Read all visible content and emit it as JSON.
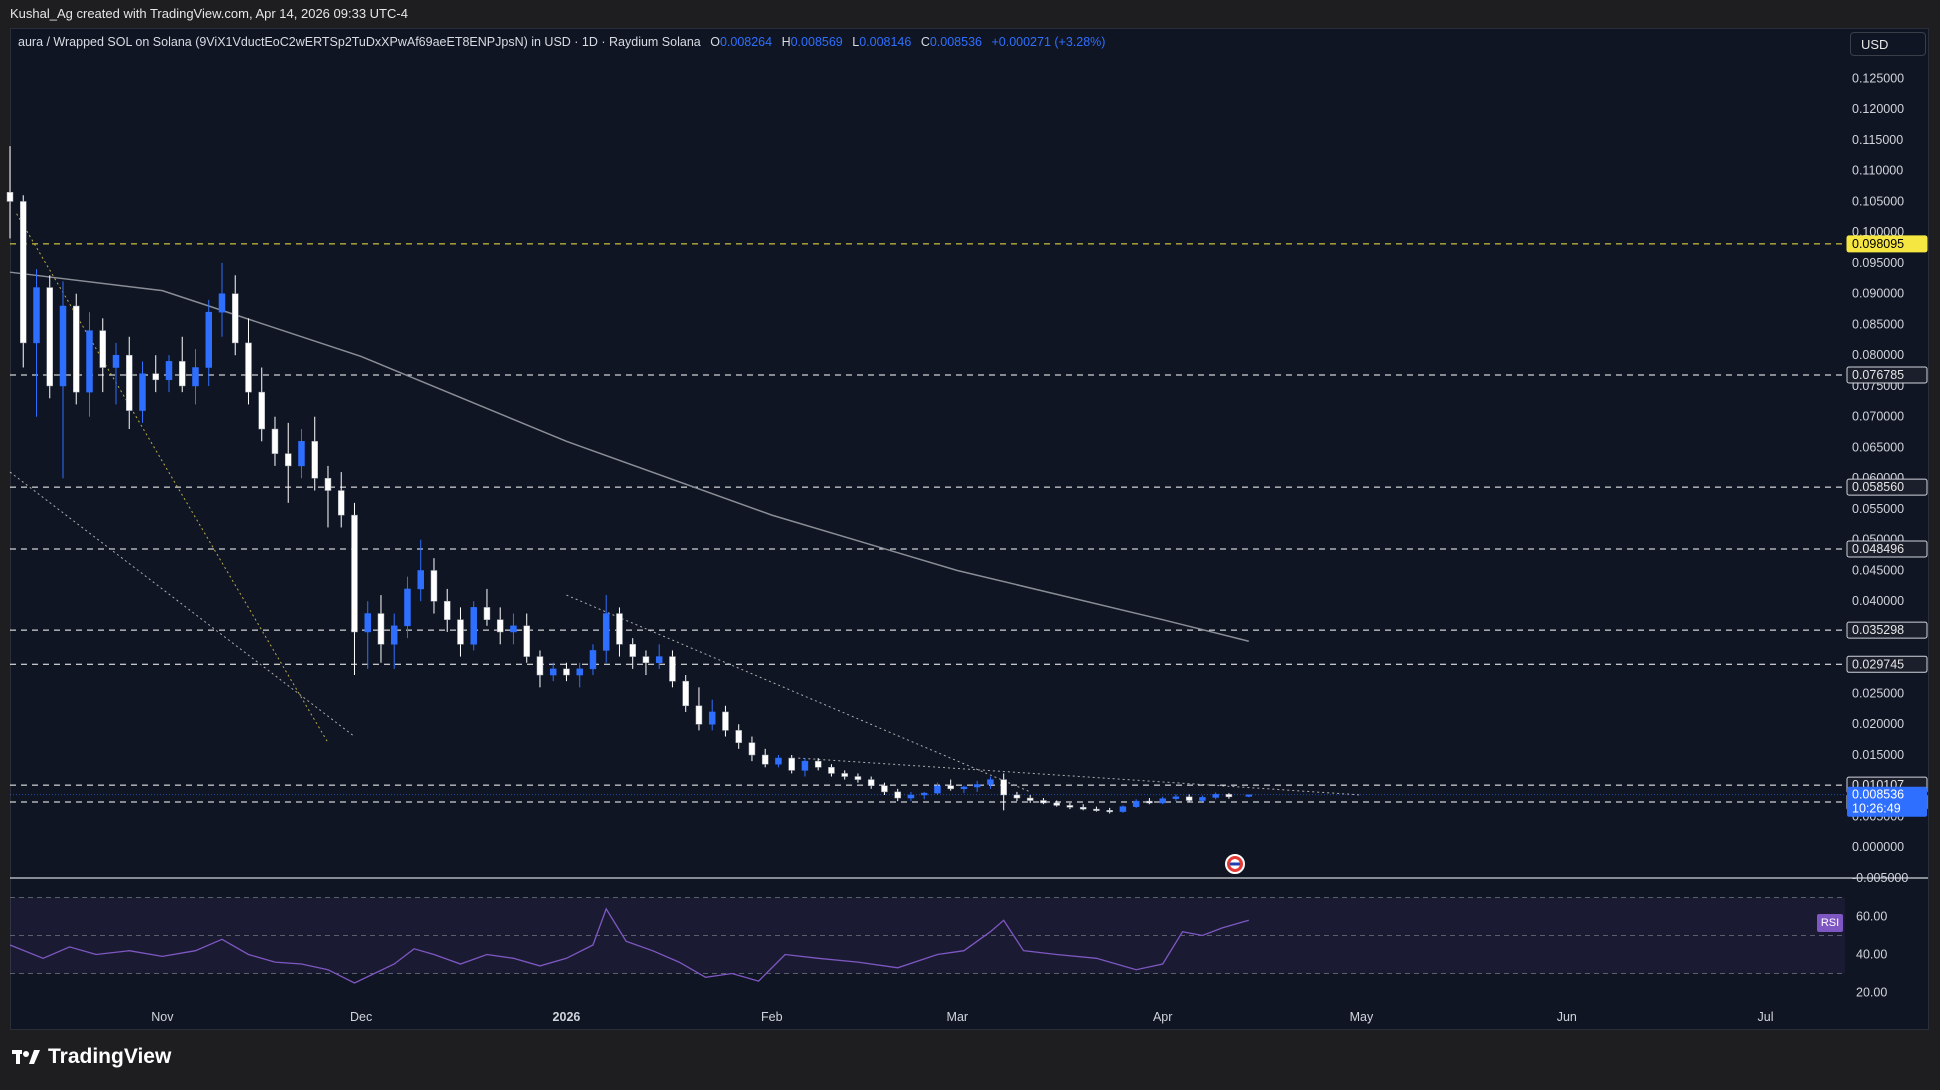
{
  "header": {
    "attribution": "Kushal_Ag created with TradingView.com, Apr 14, 2026 09:33 UTC-4"
  },
  "legend": {
    "symbol": "aura / Wrapped SOL on Solana (9ViX1VductEoC2wERTSp2TuDxXPwAf69aeET8ENPJpsN) in USD · 1D · Raydium Solana",
    "open_label": "O",
    "open": "0.008264",
    "high_label": "H",
    "high": "0.008569",
    "low_label": "L",
    "low": "0.008146",
    "close_label": "C",
    "close": "0.008536",
    "change": "+0.000271 (+3.28%)"
  },
  "currency_button": "USD",
  "rsi_label": "RSI",
  "footer": {
    "brand": "TradingView"
  },
  "colors": {
    "background": "#0f1522",
    "bull": "#2f6fff",
    "bear": "#ffffff",
    "ma": "#8a8d96",
    "rsi": "#7e57c2",
    "level_yellow": "#f5e642",
    "last_price": "#2f6fff"
  },
  "chart_data": {
    "type": "candlestick",
    "y_axis_ticks": [
      "0.125000",
      "0.120000",
      "0.115000",
      "0.110000",
      "0.105000",
      "0.100000",
      "0.095000",
      "0.090000",
      "0.085000",
      "0.080000",
      "0.075000",
      "0.070000",
      "0.065000",
      "0.060000",
      "0.055000",
      "0.050000",
      "0.045000",
      "0.040000",
      "0.035000",
      "0.030000",
      "0.025000",
      "0.020000",
      "0.015000",
      "0.010000",
      "0.005000",
      "0.000000",
      "-0.005000"
    ],
    "ylim": [
      -0.005,
      0.128
    ],
    "x_axis_labels": [
      {
        "label": "Nov",
        "date": "2025-11-01"
      },
      {
        "label": "Dec",
        "date": "2025-12-01"
      },
      {
        "label": "2026",
        "date": "2026-01-01"
      },
      {
        "label": "Feb",
        "date": "2026-02-01"
      },
      {
        "label": "Mar",
        "date": "2026-03-01"
      },
      {
        "label": "Apr",
        "date": "2026-04-01"
      },
      {
        "label": "May",
        "date": "2026-05-01"
      },
      {
        "label": "Jun",
        "date": "2026-06-01"
      },
      {
        "label": "Jul",
        "date": "2026-07-01"
      }
    ],
    "xlim": [
      "2025-10-09",
      "2026-07-13"
    ],
    "horizontal_levels": [
      {
        "value": "0.098095",
        "color": "#f5e642"
      },
      {
        "value": "0.076785",
        "color": "#ffffff"
      },
      {
        "value": "0.058560",
        "color": "#ffffff"
      },
      {
        "value": "0.048496",
        "color": "#ffffff"
      },
      {
        "value": "0.035298",
        "color": "#ffffff"
      },
      {
        "value": "0.029745",
        "color": "#ffffff"
      },
      {
        "value": "0.010107",
        "color": "#ffffff"
      },
      {
        "value": "0.007347",
        "color": "#ffffff"
      }
    ],
    "last_price": {
      "value": "0.008536",
      "countdown": "10:26:49"
    },
    "trendlines": [
      {
        "from": [
          "2025-10-10",
          0.103
        ],
        "to": [
          "2025-11-26",
          0.017
        ],
        "color": "#d9c54a"
      },
      {
        "from": [
          "2025-10-09",
          0.061
        ],
        "to": [
          "2025-11-30",
          0.018
        ],
        "color": "#c8c8c8"
      },
      {
        "from": [
          "2026-01-01",
          0.041
        ],
        "to": [
          "2026-03-12",
          0.009
        ],
        "color": "#c8c8c8"
      },
      {
        "from": [
          "2026-02-05",
          0.0145
        ],
        "to": [
          "2026-05-01",
          0.0085
        ],
        "color": "#c8c8c8"
      }
    ],
    "moving_average": {
      "points": [
        [
          "2025-10-09",
          0.0935
        ],
        [
          "2025-11-01",
          0.0905
        ],
        [
          "2025-12-01",
          0.0798
        ],
        [
          "2026-01-01",
          0.066
        ],
        [
          "2026-02-01",
          0.054
        ],
        [
          "2026-03-01",
          0.045
        ],
        [
          "2026-04-01",
          0.037
        ],
        [
          "2026-04-14",
          0.0335
        ]
      ]
    },
    "candles": [
      [
        "2025-10-09",
        0.1065,
        0.114,
        0.099,
        0.105
      ],
      [
        "2025-10-11",
        0.105,
        0.106,
        0.078,
        0.082
      ],
      [
        "2025-10-13",
        0.082,
        0.094,
        0.07,
        0.091
      ],
      [
        "2025-10-15",
        0.091,
        0.093,
        0.073,
        0.075
      ],
      [
        "2025-10-17",
        0.075,
        0.092,
        0.06,
        0.088
      ],
      [
        "2025-10-19",
        0.088,
        0.09,
        0.072,
        0.074
      ],
      [
        "2025-10-21",
        0.074,
        0.087,
        0.07,
        0.084
      ],
      [
        "2025-10-23",
        0.084,
        0.086,
        0.074,
        0.078
      ],
      [
        "2025-10-25",
        0.078,
        0.082,
        0.072,
        0.08
      ],
      [
        "2025-10-27",
        0.08,
        0.083,
        0.068,
        0.071
      ],
      [
        "2025-10-29",
        0.071,
        0.079,
        0.069,
        0.077
      ],
      [
        "2025-10-31",
        0.077,
        0.08,
        0.074,
        0.076
      ],
      [
        "2025-11-02",
        0.076,
        0.08,
        0.074,
        0.079
      ],
      [
        "2025-11-04",
        0.079,
        0.083,
        0.074,
        0.075
      ],
      [
        "2025-11-06",
        0.075,
        0.081,
        0.072,
        0.078
      ],
      [
        "2025-11-08",
        0.078,
        0.089,
        0.075,
        0.087
      ],
      [
        "2025-11-10",
        0.087,
        0.095,
        0.083,
        0.09
      ],
      [
        "2025-11-12",
        0.09,
        0.093,
        0.08,
        0.082
      ],
      [
        "2025-11-14",
        0.082,
        0.086,
        0.072,
        0.074
      ],
      [
        "2025-11-16",
        0.074,
        0.078,
        0.066,
        0.068
      ],
      [
        "2025-11-18",
        0.068,
        0.07,
        0.062,
        0.064
      ],
      [
        "2025-11-20",
        0.064,
        0.069,
        0.056,
        0.062
      ],
      [
        "2025-11-22",
        0.062,
        0.068,
        0.06,
        0.066
      ],
      [
        "2025-11-24",
        0.066,
        0.07,
        0.058,
        0.06
      ],
      [
        "2025-11-26",
        0.06,
        0.062,
        0.052,
        0.058
      ],
      [
        "2025-11-28",
        0.058,
        0.061,
        0.052,
        0.054
      ],
      [
        "2025-11-30",
        0.054,
        0.056,
        0.028,
        0.035
      ],
      [
        "2025-12-02",
        0.035,
        0.04,
        0.029,
        0.038
      ],
      [
        "2025-12-04",
        0.038,
        0.041,
        0.03,
        0.033
      ],
      [
        "2025-12-06",
        0.033,
        0.038,
        0.029,
        0.036
      ],
      [
        "2025-12-08",
        0.036,
        0.044,
        0.034,
        0.042
      ],
      [
        "2025-12-10",
        0.042,
        0.05,
        0.04,
        0.045
      ],
      [
        "2025-12-12",
        0.045,
        0.047,
        0.038,
        0.04
      ],
      [
        "2025-12-14",
        0.04,
        0.042,
        0.035,
        0.037
      ],
      [
        "2025-12-16",
        0.037,
        0.039,
        0.031,
        0.033
      ],
      [
        "2025-12-18",
        0.033,
        0.04,
        0.032,
        0.039
      ],
      [
        "2025-12-20",
        0.039,
        0.042,
        0.036,
        0.037
      ],
      [
        "2025-12-22",
        0.037,
        0.039,
        0.033,
        0.035
      ],
      [
        "2025-12-24",
        0.035,
        0.038,
        0.033,
        0.036
      ],
      [
        "2025-12-26",
        0.036,
        0.038,
        0.03,
        0.031
      ],
      [
        "2025-12-28",
        0.031,
        0.032,
        0.026,
        0.028
      ],
      [
        "2025-12-30",
        0.028,
        0.03,
        0.027,
        0.029
      ],
      [
        "2026-01-01",
        0.029,
        0.03,
        0.027,
        0.028
      ],
      [
        "2026-01-03",
        0.028,
        0.03,
        0.026,
        0.029
      ],
      [
        "2026-01-05",
        0.029,
        0.033,
        0.028,
        0.032
      ],
      [
        "2026-01-07",
        0.032,
        0.041,
        0.03,
        0.038
      ],
      [
        "2026-01-09",
        0.038,
        0.039,
        0.031,
        0.033
      ],
      [
        "2026-01-11",
        0.033,
        0.034,
        0.029,
        0.031
      ],
      [
        "2026-01-13",
        0.031,
        0.032,
        0.028,
        0.03
      ],
      [
        "2026-01-15",
        0.03,
        0.033,
        0.029,
        0.031
      ],
      [
        "2026-01-17",
        0.031,
        0.032,
        0.026,
        0.027
      ],
      [
        "2026-01-19",
        0.027,
        0.028,
        0.022,
        0.023
      ],
      [
        "2026-01-21",
        0.023,
        0.026,
        0.019,
        0.02
      ],
      [
        "2026-01-23",
        0.02,
        0.024,
        0.019,
        0.022
      ],
      [
        "2026-01-25",
        0.022,
        0.023,
        0.018,
        0.019
      ],
      [
        "2026-01-27",
        0.019,
        0.02,
        0.016,
        0.017
      ],
      [
        "2026-01-29",
        0.017,
        0.018,
        0.014,
        0.015
      ],
      [
        "2026-01-31",
        0.015,
        0.016,
        0.013,
        0.0135
      ],
      [
        "2026-02-02",
        0.0135,
        0.015,
        0.013,
        0.0145
      ],
      [
        "2026-02-04",
        0.0145,
        0.015,
        0.012,
        0.0125
      ],
      [
        "2026-02-06",
        0.0125,
        0.0145,
        0.0115,
        0.014
      ],
      [
        "2026-02-08",
        0.014,
        0.0145,
        0.0125,
        0.013
      ],
      [
        "2026-02-10",
        0.013,
        0.0135,
        0.0115,
        0.012
      ],
      [
        "2026-02-12",
        0.012,
        0.0125,
        0.011,
        0.0115
      ],
      [
        "2026-02-14",
        0.0115,
        0.012,
        0.0105,
        0.011
      ],
      [
        "2026-02-16",
        0.011,
        0.0115,
        0.0095,
        0.01
      ],
      [
        "2026-02-18",
        0.01,
        0.0105,
        0.0085,
        0.009
      ],
      [
        "2026-02-20",
        0.009,
        0.0095,
        0.0075,
        0.008
      ],
      [
        "2026-02-22",
        0.008,
        0.009,
        0.0075,
        0.0085
      ],
      [
        "2026-02-24",
        0.0085,
        0.009,
        0.0078,
        0.0088
      ],
      [
        "2026-02-26",
        0.0088,
        0.0105,
        0.0085,
        0.01
      ],
      [
        "2026-02-28",
        0.01,
        0.011,
        0.0092,
        0.0095
      ],
      [
        "2026-03-02",
        0.0095,
        0.01,
        0.0088,
        0.0098
      ],
      [
        "2026-03-04",
        0.0098,
        0.0108,
        0.009,
        0.0102
      ],
      [
        "2026-03-06",
        0.0102,
        0.0115,
        0.0095,
        0.011
      ],
      [
        "2026-03-08",
        0.011,
        0.012,
        0.006,
        0.0085
      ],
      [
        "2026-03-10",
        0.0085,
        0.009,
        0.0075,
        0.008
      ],
      [
        "2026-03-12",
        0.008,
        0.0085,
        0.0072,
        0.0076
      ],
      [
        "2026-03-14",
        0.0076,
        0.008,
        0.007,
        0.0072
      ],
      [
        "2026-03-16",
        0.0072,
        0.0076,
        0.0066,
        0.0068
      ],
      [
        "2026-03-18",
        0.0068,
        0.0072,
        0.0062,
        0.0065
      ],
      [
        "2026-03-20",
        0.0065,
        0.007,
        0.006,
        0.0062
      ],
      [
        "2026-03-22",
        0.0062,
        0.0066,
        0.0058,
        0.006
      ],
      [
        "2026-03-24",
        0.006,
        0.0064,
        0.0055,
        0.0058
      ],
      [
        "2026-03-26",
        0.0058,
        0.0068,
        0.0056,
        0.0066
      ],
      [
        "2026-03-28",
        0.0066,
        0.0078,
        0.0064,
        0.0075
      ],
      [
        "2026-03-30",
        0.0075,
        0.008,
        0.007,
        0.0072
      ],
      [
        "2026-04-01",
        0.0072,
        0.0082,
        0.007,
        0.0079
      ],
      [
        "2026-04-03",
        0.0079,
        0.0086,
        0.0075,
        0.0082
      ],
      [
        "2026-04-05",
        0.0082,
        0.0086,
        0.0074,
        0.0076
      ],
      [
        "2026-04-07",
        0.0076,
        0.0084,
        0.0074,
        0.0081
      ],
      [
        "2026-04-09",
        0.0081,
        0.0089,
        0.0078,
        0.0086
      ],
      [
        "2026-04-11",
        0.0086,
        0.0088,
        0.0079,
        0.0082
      ],
      [
        "2026-04-14",
        0.008264,
        0.008569,
        0.008146,
        0.008536
      ]
    ],
    "rsi": {
      "y_axis_ticks": [
        "60.00",
        "40.00",
        "20.00"
      ],
      "ylim": [
        15,
        75
      ],
      "upper": 70,
      "middle": 50,
      "lower": 30,
      "points": [
        [
          "2025-10-09",
          45
        ],
        [
          "2025-10-14",
          38
        ],
        [
          "2025-10-18",
          44
        ],
        [
          "2025-10-22",
          40
        ],
        [
          "2025-10-27",
          42
        ],
        [
          "2025-11-01",
          39
        ],
        [
          "2025-11-06",
          42
        ],
        [
          "2025-11-10",
          48
        ],
        [
          "2025-11-14",
          40
        ],
        [
          "2025-11-18",
          36
        ],
        [
          "2025-11-22",
          35
        ],
        [
          "2025-11-26",
          32
        ],
        [
          "2025-11-30",
          25
        ],
        [
          "2025-12-03",
          30
        ],
        [
          "2025-12-06",
          35
        ],
        [
          "2025-12-09",
          43
        ],
        [
          "2025-12-12",
          40
        ],
        [
          "2025-12-16",
          35
        ],
        [
          "2025-12-20",
          40
        ],
        [
          "2025-12-24",
          38
        ],
        [
          "2025-12-28",
          34
        ],
        [
          "2026-01-01",
          38
        ],
        [
          "2026-01-05",
          45
        ],
        [
          "2026-01-07",
          64
        ],
        [
          "2026-01-10",
          47
        ],
        [
          "2026-01-14",
          42
        ],
        [
          "2026-01-18",
          36
        ],
        [
          "2026-01-22",
          28
        ],
        [
          "2026-01-26",
          30
        ],
        [
          "2026-01-30",
          26
        ],
        [
          "2026-02-03",
          40
        ],
        [
          "2026-02-08",
          38
        ],
        [
          "2026-02-14",
          36
        ],
        [
          "2026-02-20",
          33
        ],
        [
          "2026-02-26",
          40
        ],
        [
          "2026-03-02",
          42
        ],
        [
          "2026-03-06",
          52
        ],
        [
          "2026-03-08",
          58
        ],
        [
          "2026-03-11",
          42
        ],
        [
          "2026-03-16",
          40
        ],
        [
          "2026-03-22",
          38
        ],
        [
          "2026-03-28",
          32
        ],
        [
          "2026-04-01",
          35
        ],
        [
          "2026-04-04",
          52
        ],
        [
          "2026-04-07",
          50
        ],
        [
          "2026-04-10",
          54
        ],
        [
          "2026-04-14",
          58
        ]
      ]
    }
  }
}
